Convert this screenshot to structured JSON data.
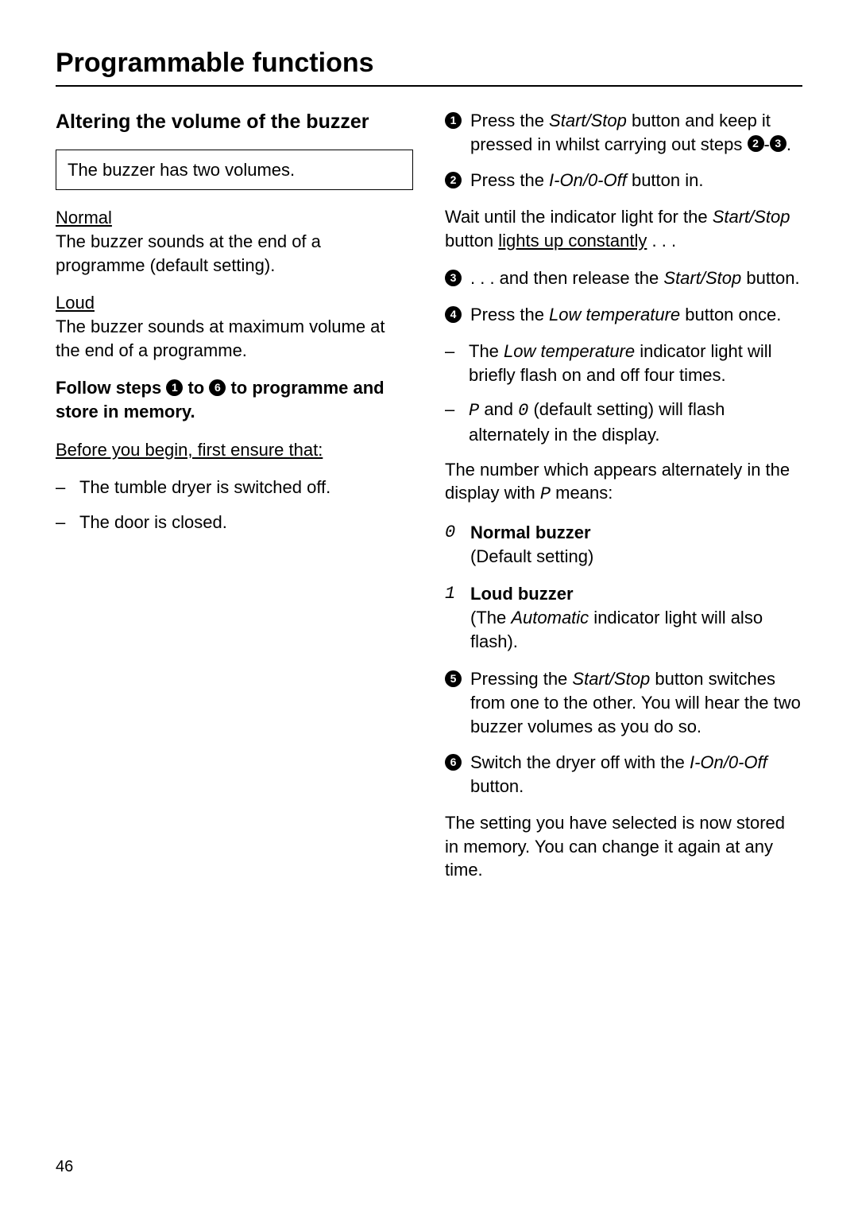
{
  "header": {
    "title": "Programmable functions"
  },
  "left": {
    "heading": "Altering the volume of the buzzer",
    "infobox": "The buzzer has two volumes.",
    "normal_label": "Normal",
    "normal_text": "The buzzer sounds at the end of a programme (default setting).",
    "loud_label": "Loud",
    "loud_text": "The buzzer sounds at maximum volume at the end of a programme.",
    "follow_prefix": "Follow steps ",
    "follow_to": " to ",
    "follow_suffix": " to programme and store in memory.",
    "before_you_begin": "Before you begin, first ensure that:",
    "ensure_items": [
      "The tumble dryer is switched off.",
      "The door is closed."
    ]
  },
  "right": {
    "step1_a": "Press the ",
    "step1_italic": "Start/Stop",
    "step1_b": " button and keep it pressed in whilst carrying out steps ",
    "step1_dash": "-",
    "step1_dot": ".",
    "step2_a": "Press the ",
    "step2_italic": "I-On/0-Off",
    "step2_b": " button in.",
    "wait_a": "Wait until the indicator light for the ",
    "wait_italic": "Start/Stop",
    "wait_b": " button ",
    "wait_ul": "lights up constantly",
    "wait_dots": " . . .",
    "step3_a": ". . . and then release the ",
    "step3_italic": "Start/Stop",
    "step3_b": " button.",
    "step4_a": "Press the ",
    "step4_italic": "Low temperature",
    "step4_b": " button once.",
    "dash_lowtemp_a": "The ",
    "dash_lowtemp_italic": "Low temperature",
    "dash_lowtemp_b": " indicator light will briefly flash on and off four times.",
    "dash_p0_prefix": "",
    "dash_p0_p": "P",
    "dash_p0_mid": " and ",
    "dash_p0_zero": "0",
    "dash_p0_suffix": " (default setting) will flash alternately in the display.",
    "meaning_a": "The number which appears alternately in the display with ",
    "meaning_p": "P",
    "meaning_b": " means:",
    "normal_buzzer_digit": "0",
    "normal_buzzer_label": "Normal buzzer",
    "normal_buzzer_sub": "(Default setting)",
    "loud_buzzer_digit": "1",
    "loud_buzzer_label": "Loud buzzer",
    "loud_buzzer_sub_a": "(The ",
    "loud_buzzer_sub_italic": "Automatic",
    "loud_buzzer_sub_b": " indicator light will also flash).",
    "step5_a": "Pressing the ",
    "step5_italic": "Start/Stop",
    "step5_b": " button switches from one to the other. You will hear the two buzzer volumes as you do so.",
    "step6_a": "Switch the dryer off with the ",
    "step6_italic": "I-On/0-Off",
    "step6_b": " button.",
    "stored_text": "The setting you have selected is now stored in memory. You can change it again at any time."
  },
  "circled": {
    "one": "1",
    "two": "2",
    "three": "3",
    "four": "4",
    "five": "5",
    "six": "6"
  },
  "page_number": "46"
}
